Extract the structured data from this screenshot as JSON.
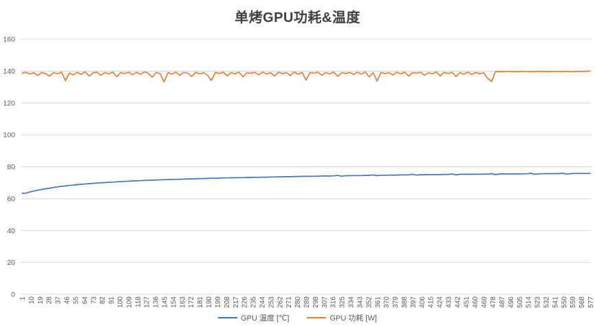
{
  "page": {
    "title": "单烤GPU功耗&温度"
  },
  "colors": {
    "temp_series": "#4472C4",
    "power_series": "#ED7D31",
    "gridline": "#D9D9D9",
    "tick_text": "#595959",
    "title_text": "#3f3f3f"
  },
  "legend": [
    {
      "label": "GPU 温度 [℃]",
      "color": "#4472C4"
    },
    {
      "label": "GPU 功耗 [W]",
      "color": "#ED7D31"
    }
  ],
  "chart_data": {
    "type": "line",
    "title": "单烤GPU功耗&温度",
    "xlabel": "",
    "ylabel": "",
    "ylim": [
      0,
      160
    ],
    "x_range": [
      1,
      577
    ],
    "y_ticks": [
      0,
      20,
      40,
      60,
      80,
      100,
      120,
      140,
      160
    ],
    "x_tick_labels": [
      1,
      10,
      19,
      28,
      37,
      46,
      55,
      64,
      73,
      82,
      91,
      100,
      109,
      118,
      127,
      136,
      145,
      154,
      163,
      172,
      181,
      190,
      199,
      208,
      217,
      226,
      235,
      244,
      253,
      262,
      271,
      280,
      289,
      298,
      307,
      316,
      325,
      334,
      343,
      352,
      361,
      370,
      379,
      388,
      397,
      406,
      415,
      424,
      433,
      442,
      451,
      460,
      469,
      478,
      487,
      496,
      505,
      514,
      523,
      532,
      541,
      550,
      559,
      568,
      577
    ],
    "grid": "horizontal",
    "legend_position": "bottom",
    "series": [
      {
        "name": "GPU 温度 [℃]",
        "color": "#4472C4",
        "x": [
          1,
          5,
          9,
          13,
          17,
          21,
          25,
          29,
          33,
          37,
          41,
          45,
          49,
          53,
          57,
          61,
          65,
          69,
          73,
          77,
          81,
          85,
          89,
          93,
          97,
          101,
          105,
          109,
          113,
          117,
          121,
          125,
          129,
          133,
          137,
          141,
          145,
          149,
          153,
          157,
          161,
          165,
          169,
          173,
          177,
          181,
          185,
          189,
          193,
          197,
          201,
          205,
          209,
          213,
          217,
          221,
          225,
          229,
          233,
          237,
          241,
          245,
          249,
          253,
          257,
          261,
          265,
          269,
          273,
          277,
          281,
          285,
          289,
          293,
          297,
          301,
          305,
          309,
          313,
          317,
          321,
          325,
          329,
          333,
          337,
          341,
          345,
          349,
          353,
          357,
          361,
          365,
          369,
          373,
          377,
          381,
          385,
          389,
          393,
          397,
          401,
          405,
          409,
          413,
          417,
          421,
          425,
          429,
          433,
          437,
          441,
          445,
          449,
          453,
          457,
          461,
          465,
          469,
          473,
          477,
          481,
          485,
          489,
          493,
          497,
          501,
          505,
          509,
          513,
          517,
          521,
          525,
          529,
          533,
          537,
          541,
          545,
          549,
          553,
          557,
          561,
          565,
          569,
          573,
          577
        ],
        "values": [
          63.3,
          63.5,
          64.2,
          64.8,
          65.3,
          65.8,
          66.2,
          66.6,
          67.0,
          67.4,
          67.7,
          68.0,
          68.3,
          68.5,
          68.8,
          69.0,
          69.2,
          69.4,
          69.6,
          69.8,
          70.0,
          70.1,
          70.3,
          70.4,
          70.6,
          70.7,
          70.8,
          71.0,
          71.1,
          71.2,
          71.3,
          71.4,
          71.5,
          71.6,
          71.7,
          71.8,
          71.9,
          72.0,
          72.0,
          72.1,
          72.2,
          72.3,
          72.4,
          72.4,
          72.5,
          72.6,
          72.6,
          72.7,
          72.8,
          72.8,
          72.9,
          73.0,
          73.0,
          73.1,
          73.1,
          73.2,
          73.2,
          73.3,
          73.3,
          73.4,
          73.4,
          73.5,
          73.5,
          73.6,
          73.6,
          73.7,
          73.7,
          73.8,
          73.8,
          73.9,
          73.9,
          74.0,
          74.0,
          74.0,
          74.1,
          74.1,
          74.2,
          74.2,
          74.2,
          74.3,
          74.6,
          74.1,
          74.4,
          74.4,
          74.5,
          74.5,
          74.5,
          74.6,
          74.6,
          74.9,
          74.4,
          74.7,
          74.7,
          74.8,
          74.8,
          74.8,
          74.9,
          74.9,
          74.9,
          75.3,
          74.8,
          75.0,
          75.0,
          75.1,
          75.1,
          75.1,
          75.1,
          75.2,
          75.2,
          75.5,
          74.9,
          75.3,
          75.3,
          75.3,
          75.3,
          75.3,
          75.4,
          75.4,
          75.4,
          75.7,
          75.1,
          75.5,
          75.5,
          75.5,
          75.5,
          75.5,
          75.5,
          75.6,
          75.6,
          75.9,
          75.3,
          75.6,
          75.6,
          75.7,
          75.7,
          75.7,
          75.7,
          76.0,
          75.4,
          75.7,
          75.8,
          75.8,
          75.8,
          75.8,
          75.8
        ]
      },
      {
        "name": "GPU 功耗 [W]",
        "color": "#ED7D31",
        "x": [
          1,
          5,
          9,
          13,
          17,
          21,
          25,
          29,
          33,
          37,
          41,
          45,
          49,
          53,
          57,
          61,
          65,
          69,
          73,
          77,
          81,
          85,
          89,
          93,
          97,
          101,
          105,
          109,
          113,
          117,
          121,
          125,
          129,
          133,
          137,
          141,
          145,
          149,
          153,
          157,
          161,
          165,
          169,
          173,
          177,
          181,
          185,
          189,
          193,
          197,
          201,
          205,
          209,
          213,
          217,
          221,
          225,
          229,
          233,
          237,
          241,
          245,
          249,
          253,
          257,
          261,
          265,
          269,
          273,
          277,
          281,
          285,
          289,
          293,
          297,
          301,
          305,
          309,
          313,
          317,
          321,
          325,
          329,
          333,
          337,
          341,
          345,
          349,
          353,
          357,
          361,
          365,
          369,
          373,
          377,
          381,
          385,
          389,
          393,
          397,
          401,
          405,
          409,
          413,
          417,
          421,
          425,
          429,
          433,
          437,
          441,
          445,
          449,
          453,
          457,
          461,
          465,
          469,
          473,
          477,
          481,
          485,
          489,
          493,
          497,
          501,
          505,
          509,
          513,
          517,
          521,
          525,
          529,
          533,
          537,
          541,
          545,
          549,
          553,
          557,
          561,
          565,
          569,
          573,
          577
        ],
        "values": [
          138.6,
          139.3,
          138.1,
          139.0,
          137.2,
          139.2,
          138.4,
          136.8,
          139.1,
          138.3,
          139.4,
          134.0,
          138.8,
          137.6,
          139.2,
          138.0,
          139.5,
          136.9,
          138.9,
          139.3,
          137.4,
          139.1,
          138.2,
          139.4,
          136.5,
          139.0,
          138.5,
          139.3,
          137.8,
          139.2,
          138.0,
          139.5,
          138.6,
          136.2,
          139.1,
          138.4,
          133.2,
          139.0,
          138.1,
          139.4,
          137.3,
          139.2,
          138.7,
          136.6,
          139.3,
          138.2,
          139.0,
          137.5,
          134.1,
          139.2,
          138.5,
          139.4,
          137.0,
          139.1,
          138.3,
          139.3,
          136.4,
          139.0,
          138.6,
          139.2,
          137.7,
          139.4,
          138.1,
          139.0,
          136.9,
          139.3,
          138.4,
          139.1,
          137.2,
          139.5,
          138.0,
          139.2,
          134.3,
          139.0,
          138.7,
          139.3,
          137.4,
          139.1,
          138.2,
          139.4,
          136.7,
          139.0,
          138.5,
          139.2,
          137.9,
          139.3,
          138.1,
          139.5,
          136.3,
          139.1,
          133.8,
          139.2,
          138.4,
          139.0,
          137.6,
          139.3,
          138.2,
          139.4,
          136.8,
          139.1,
          138.6,
          139.2,
          137.3,
          139.0,
          138.3,
          139.5,
          137.0,
          139.2,
          138.5,
          139.3,
          136.6,
          139.1,
          138.0,
          139.4,
          137.8,
          139.2,
          138.3,
          139.0,
          135.5,
          133.4,
          139.6,
          139.7,
          139.6,
          139.8,
          139.7,
          139.6,
          139.7,
          139.8,
          139.6,
          139.7,
          139.6,
          139.8,
          139.7,
          139.6,
          139.7,
          139.8,
          139.6,
          139.7,
          139.8,
          139.6,
          139.7,
          139.8,
          139.7,
          139.9,
          140.0
        ]
      }
    ]
  }
}
